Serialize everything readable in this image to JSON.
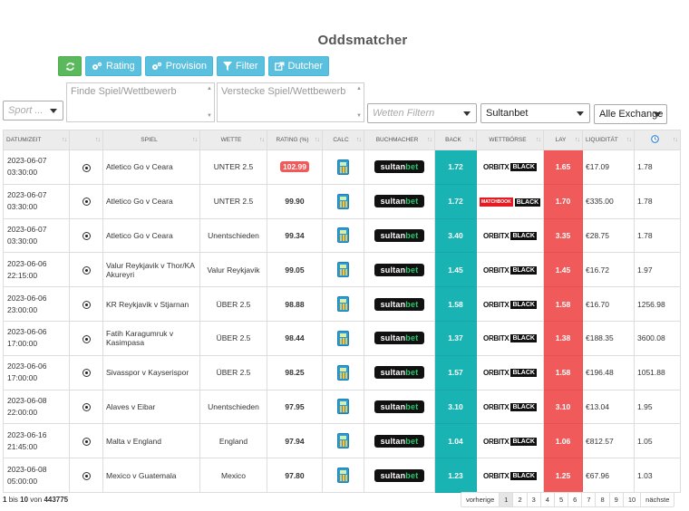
{
  "title": "Oddsmatcher",
  "toolbar": {
    "refresh_icon": "refresh-icon",
    "rating_label": "Rating",
    "provision_label": "Provision",
    "filter_label": "Filter",
    "dutcher_label": "Dutcher"
  },
  "filters": {
    "sport_placeholder": "Sport ...",
    "find_placeholder": "Finde Spiel/Wettbewerb",
    "hide_placeholder": "Verstecke Spiel/Wettbewerb",
    "bets_placeholder": "Wetten Filtern",
    "bookmaker_value": "Sultanbet",
    "exchange_value": "Alle Exchange"
  },
  "columns": [
    "DATUM/ZEIT",
    "",
    "SPIEL",
    "WETTE",
    "RATING (%)",
    "CALC",
    "BUCHMACHER",
    "BACK",
    "WETTBÖRSE",
    "LAY",
    "LIQUIDITÄT",
    ""
  ],
  "rows": [
    {
      "date": "2023-06-07",
      "time": "03:30:00",
      "match": "Atletico Go v Ceara",
      "bet": "UNTER 2.5",
      "rating": "102.99",
      "back": "1.72",
      "lay": "1.65",
      "liquidity": "€17.09",
      "extra": "1.78",
      "exchange": "orbit"
    },
    {
      "date": "2023-06-07",
      "time": "03:30:00",
      "match": "Atletico Go v Ceara",
      "bet": "UNTER 2.5",
      "rating": "99.90",
      "back": "1.72",
      "lay": "1.70",
      "liquidity": "€335.00",
      "extra": "1.78",
      "exchange": "matchbook"
    },
    {
      "date": "2023-06-07",
      "time": "03:30:00",
      "match": "Atletico Go v Ceara",
      "bet": "Unentschieden",
      "rating": "99.34",
      "back": "3.40",
      "lay": "3.35",
      "liquidity": "€28.75",
      "extra": "1.78",
      "exchange": "orbit"
    },
    {
      "date": "2023-06-06",
      "time": "22:15:00",
      "match": "Valur Reykjavik v Thor/KA Akureyri",
      "bet": "Valur Reykjavik",
      "rating": "99.05",
      "back": "1.45",
      "lay": "1.45",
      "liquidity": "€16.72",
      "extra": "1.97",
      "exchange": "orbit"
    },
    {
      "date": "2023-06-06",
      "time": "23:00:00",
      "match": "KR Reykjavik v Stjarnan",
      "bet": "ÜBER 2.5",
      "rating": "98.88",
      "back": "1.58",
      "lay": "1.58",
      "liquidity": "€16.70",
      "extra": "1256.98",
      "exchange": "orbit"
    },
    {
      "date": "2023-06-06",
      "time": "17:00:00",
      "match": "Fatih Karagumruk v Kasimpasa",
      "bet": "ÜBER 2.5",
      "rating": "98.44",
      "back": "1.37",
      "lay": "1.38",
      "liquidity": "€188.35",
      "extra": "3600.08",
      "exchange": "orbit"
    },
    {
      "date": "2023-06-06",
      "time": "17:00:00",
      "match": "Sivasspor v Kayserispor",
      "bet": "ÜBER 2.5",
      "rating": "98.25",
      "back": "1.57",
      "lay": "1.58",
      "liquidity": "€196.48",
      "extra": "1051.88",
      "exchange": "orbit"
    },
    {
      "date": "2023-06-08",
      "time": "22:00:00",
      "match": "Alaves v Eibar",
      "bet": "Unentschieden",
      "rating": "97.95",
      "back": "3.10",
      "lay": "3.10",
      "liquidity": "€13.04",
      "extra": "1.95",
      "exchange": "orbit"
    },
    {
      "date": "2023-06-16",
      "time": "21:45:00",
      "match": "Malta v England",
      "bet": "England",
      "rating": "97.94",
      "back": "1.04",
      "lay": "1.06",
      "liquidity": "€812.57",
      "extra": "1.05",
      "exchange": "orbit"
    },
    {
      "date": "2023-06-08",
      "time": "05:00:00",
      "match": "Mexico v Guatemala",
      "bet": "Mexico",
      "rating": "97.80",
      "back": "1.23",
      "lay": "1.25",
      "liquidity": "€67.96",
      "extra": "1.03",
      "exchange": "orbit"
    }
  ],
  "bookmaker_logo": {
    "part1": "sultan",
    "part2": "bet"
  },
  "exchange_logo": {
    "orbit": "ORBIT",
    "x": "X",
    "black": "BLACK",
    "matchbook": "MATCHBOOK"
  },
  "footer": {
    "from": "1",
    "to_label": "bis",
    "to": "10",
    "of_label": "von",
    "total": "443775"
  },
  "pager": {
    "prev": "vorherige",
    "pages": [
      "1",
      "2",
      "3",
      "4",
      "5",
      "6",
      "7",
      "8",
      "9",
      "10"
    ],
    "next": "nächste",
    "active": "1"
  },
  "colors": {
    "back": "#1ab3b3",
    "lay": "#f05a5a",
    "accent_blue": "#5bc0de",
    "green": "#5cb85c"
  }
}
